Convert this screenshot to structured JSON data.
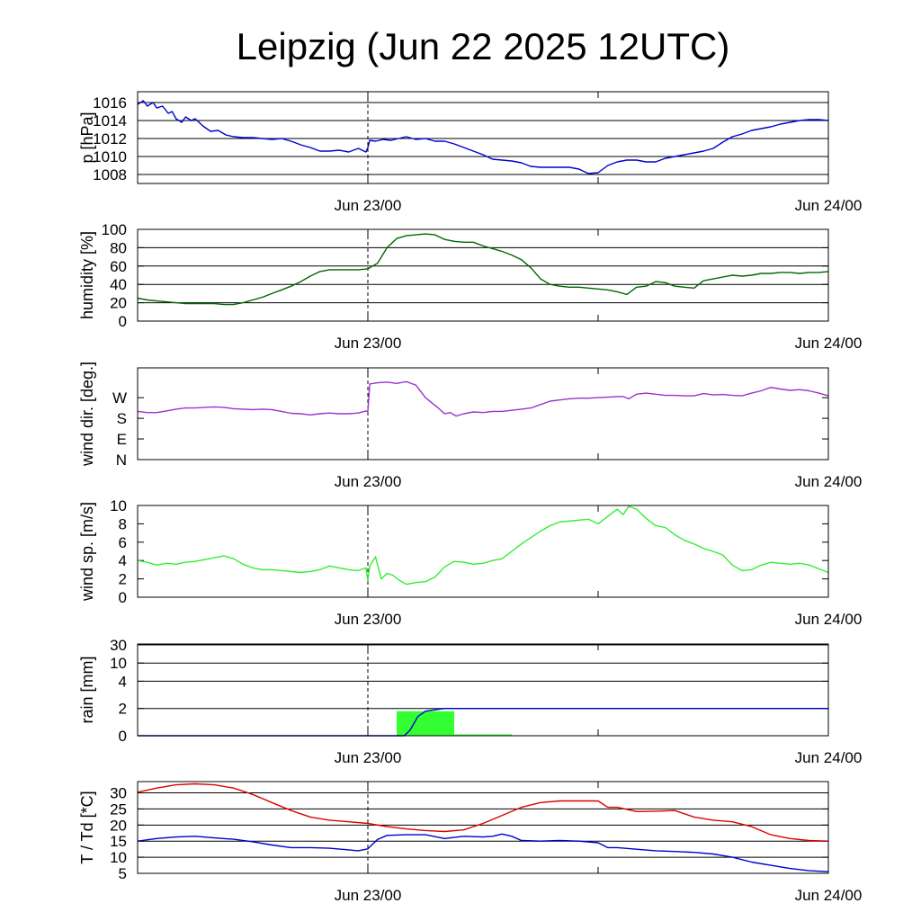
{
  "title": "Leipzig (Jun 22 2025 12UTC)",
  "x_axis": {
    "ticks": [
      "",
      "Jun 23/00",
      "",
      "Jun 24/00"
    ],
    "range_hours": [
      0,
      36
    ],
    "tick_hours": [
      0,
      12,
      24,
      36
    ],
    "marker_hour": 12
  },
  "chart_data": [
    {
      "type": "line",
      "ylabel": "p [hPa]",
      "ylim": [
        1007,
        1017.2
      ],
      "yticks": [
        1008,
        1010,
        1012,
        1014,
        1016
      ],
      "ytick_labels": [
        "1008",
        "1010",
        "1012",
        "1014",
        "1016"
      ],
      "grid": true,
      "series": [
        {
          "color": "#0000cc",
          "x": [
            0,
            0.3,
            0.5,
            0.8,
            1,
            1.3,
            1.6,
            1.8,
            2,
            2.3,
            2.5,
            2.8,
            3,
            3.4,
            3.8,
            4.2,
            4.6,
            5,
            5.5,
            6,
            6.5,
            7,
            7.5,
            8,
            8.5,
            9,
            9.5,
            10,
            10.5,
            11,
            11.5,
            11.9,
            12,
            12.1,
            12.4,
            12.8,
            13.2,
            13.6,
            14,
            14.5,
            15,
            15.5,
            16,
            16.5,
            17,
            17.5,
            18,
            18.5,
            19,
            19.5,
            20,
            20.5,
            21,
            21.5,
            22,
            22.5,
            23,
            23.5,
            24,
            24.5,
            25,
            25.5,
            26,
            26.5,
            27,
            27.5,
            28,
            28.5,
            29,
            29.5,
            30,
            30.5,
            31,
            31.5,
            32,
            32.5,
            33,
            33.5,
            34,
            34.5,
            35,
            35.5,
            36
          ],
          "y": [
            1015.8,
            1016.2,
            1015.6,
            1016.0,
            1015.4,
            1015.6,
            1014.8,
            1015.0,
            1014.2,
            1013.8,
            1014.4,
            1014.0,
            1014.2,
            1013.4,
            1012.8,
            1012.9,
            1012.4,
            1012.2,
            1012.1,
            1012.1,
            1012.0,
            1011.9,
            1012.0,
            1011.7,
            1011.3,
            1011.0,
            1010.6,
            1010.6,
            1010.7,
            1010.5,
            1010.9,
            1010.5,
            1011.0,
            1011.8,
            1011.7,
            1011.9,
            1011.8,
            1012.0,
            1012.2,
            1011.9,
            1012.0,
            1011.7,
            1011.7,
            1011.4,
            1011.0,
            1010.6,
            1010.2,
            1009.7,
            1009.6,
            1009.5,
            1009.3,
            1008.9,
            1008.8,
            1008.8,
            1008.8,
            1008.8,
            1008.6,
            1008.1,
            1008.2,
            1009.0,
            1009.4,
            1009.6,
            1009.6,
            1009.4,
            1009.4,
            1009.8,
            1010.0,
            1010.2,
            1010.4,
            1010.6,
            1010.9,
            1011.6,
            1012.2,
            1012.5,
            1012.9,
            1013.1,
            1013.3,
            1013.6,
            1013.8,
            1014.0,
            1014.1,
            1014.1,
            1014.0
          ]
        }
      ]
    },
    {
      "type": "line",
      "ylabel": "humidity [%]",
      "ylim": [
        0,
        100
      ],
      "yticks": [
        0,
        20,
        40,
        60,
        80,
        100
      ],
      "ytick_labels": [
        "0",
        "20",
        "40",
        "60",
        "80",
        "100"
      ],
      "grid": true,
      "series": [
        {
          "color": "#006600",
          "x": [
            0,
            0.5,
            1,
            1.5,
            2,
            2.5,
            3,
            3.5,
            4,
            4.5,
            5,
            5.5,
            6,
            6.5,
            7,
            7.5,
            8,
            8.5,
            9,
            9.5,
            10,
            10.5,
            11,
            11.5,
            12,
            12.5,
            13,
            13.5,
            14,
            14.5,
            15,
            15.5,
            16,
            16.5,
            17,
            17.5,
            18,
            18.5,
            19,
            19.5,
            20,
            20.5,
            21,
            21.5,
            22,
            22.5,
            23,
            23.5,
            24,
            24.5,
            25,
            25.5,
            26,
            26.5,
            27,
            27.5,
            28,
            28.5,
            29,
            29.5,
            30,
            30.5,
            31,
            31.5,
            32,
            32.5,
            33,
            33.5,
            34,
            34.5,
            35,
            35.5,
            36
          ],
          "y": [
            25,
            23,
            22,
            21,
            20,
            19,
            19,
            19,
            19,
            18,
            18,
            20,
            23,
            26,
            30,
            34,
            38,
            43,
            49,
            54,
            56,
            56,
            56,
            56,
            57,
            63,
            80,
            90,
            93,
            94,
            95,
            94,
            89,
            87,
            86,
            86,
            82,
            79,
            76,
            72,
            67,
            58,
            46,
            40,
            38,
            37,
            37,
            36,
            35,
            34,
            32,
            29,
            37,
            38,
            43,
            42,
            38,
            37,
            36,
            44,
            46,
            48,
            50,
            49,
            50,
            52,
            52,
            53,
            53,
            52,
            53,
            53,
            54
          ]
        }
      ]
    },
    {
      "type": "line",
      "ylabel": "wind dir. [deg.]",
      "ylim": [
        0,
        400
      ],
      "yticks": [
        0,
        90,
        180,
        270
      ],
      "ytick_labels": [
        "N",
        "E",
        "S",
        "W"
      ],
      "grid": false,
      "series": [
        {
          "color": "#9933cc",
          "x": [
            0,
            0.5,
            1,
            1.5,
            2,
            2.5,
            3,
            3.5,
            4,
            4.5,
            5,
            5.5,
            6,
            6.5,
            7,
            7.5,
            8,
            8.5,
            9,
            9.5,
            10,
            10.5,
            11,
            11.5,
            11.9,
            12,
            12.1,
            12.5,
            13,
            13.5,
            14,
            14.5,
            15,
            15.3,
            15.6,
            16,
            16.3,
            16.6,
            17,
            17.5,
            18,
            18.5,
            19,
            19.5,
            20,
            20.5,
            21,
            21.5,
            22,
            22.5,
            23,
            23.5,
            24,
            24.5,
            25,
            25.3,
            25.6,
            26,
            26.5,
            27,
            27.5,
            28,
            28.5,
            29,
            29.5,
            30,
            30.5,
            31,
            31.5,
            32,
            32.5,
            33,
            33.5,
            34,
            34.5,
            35,
            35.5,
            36
          ],
          "y": [
            210,
            205,
            205,
            212,
            220,
            225,
            225,
            228,
            230,
            228,
            222,
            220,
            218,
            220,
            218,
            210,
            202,
            200,
            195,
            200,
            203,
            200,
            200,
            203,
            212,
            210,
            330,
            335,
            338,
            332,
            340,
            325,
            270,
            250,
            230,
            200,
            205,
            190,
            200,
            208,
            205,
            210,
            210,
            215,
            220,
            225,
            240,
            255,
            260,
            265,
            268,
            268,
            270,
            272,
            275,
            275,
            265,
            285,
            290,
            285,
            280,
            280,
            278,
            278,
            288,
            282,
            284,
            280,
            278,
            290,
            300,
            315,
            308,
            302,
            305,
            300,
            290,
            278
          ]
        }
      ]
    },
    {
      "type": "line",
      "ylabel": "wind sp. [m/s]",
      "ylim": [
        0,
        10
      ],
      "yticks": [
        0,
        2,
        4,
        6,
        8,
        10
      ],
      "ytick_labels": [
        "0",
        "2",
        "4",
        "6",
        "8",
        "10"
      ],
      "grid": false,
      "series": [
        {
          "color": "#33ee33",
          "x": [
            0,
            0.5,
            1,
            1.5,
            2,
            2.5,
            3,
            3.5,
            4,
            4.5,
            5,
            5.5,
            6,
            6.5,
            7,
            7.5,
            8,
            8.5,
            9,
            9.5,
            10,
            10.5,
            11,
            11.5,
            11.9,
            12,
            12.1,
            12.4,
            12.7,
            13,
            13.3,
            13.6,
            14,
            14.5,
            15,
            15.5,
            16,
            16.5,
            17,
            17.5,
            18,
            18.5,
            19,
            19.5,
            20,
            20.5,
            21,
            21.5,
            22,
            22.5,
            23,
            23.5,
            24,
            24.5,
            25,
            25.3,
            25.6,
            26,
            26.5,
            27,
            27.5,
            28,
            28.5,
            29,
            29.5,
            30,
            30.5,
            31,
            31.5,
            32,
            32.5,
            33,
            33.5,
            34,
            34.5,
            35,
            35.5,
            36
          ],
          "y": [
            4.0,
            3.8,
            3.5,
            3.7,
            3.6,
            3.8,
            3.9,
            4.1,
            4.3,
            4.5,
            4.2,
            3.6,
            3.2,
            3.0,
            3.0,
            2.9,
            2.8,
            2.7,
            2.8,
            3.0,
            3.4,
            3.2,
            3.0,
            2.9,
            3.2,
            1.8,
            3.4,
            4.4,
            2.0,
            2.6,
            2.4,
            1.9,
            1.4,
            1.6,
            1.7,
            2.2,
            3.3,
            3.9,
            3.8,
            3.6,
            3.7,
            4.0,
            4.2,
            5.0,
            5.8,
            6.5,
            7.2,
            7.8,
            8.2,
            8.3,
            8.4,
            8.5,
            8.0,
            8.8,
            9.6,
            9.0,
            9.9,
            9.6,
            8.6,
            7.8,
            7.6,
            6.8,
            6.2,
            5.8,
            5.3,
            5.0,
            4.6,
            3.5,
            2.9,
            3.0,
            3.5,
            3.8,
            3.7,
            3.6,
            3.7,
            3.5,
            3.1,
            2.7
          ]
        }
      ]
    },
    {
      "type": "bar",
      "ylabel": "rain [mm]",
      "scale": "nonlinear",
      "ylim": [
        0,
        31
      ],
      "yticks": [
        0,
        2,
        4,
        10,
        30
      ],
      "ytick_labels": [
        "0",
        "2",
        "4",
        "10",
        "30"
      ],
      "grid": true,
      "bars": {
        "color": "#33ff33",
        "start_hours": [
          13.5,
          16.5
        ],
        "end_hours": [
          16.5,
          19.5
        ],
        "values": [
          1.8,
          0.1
        ]
      },
      "series": [
        {
          "name": "accumulated",
          "color": "#0000cc",
          "x": [
            0,
            13.9,
            14.2,
            14.6,
            15.0,
            15.5,
            16.0,
            36
          ],
          "y": [
            0,
            0,
            0.4,
            1.4,
            1.8,
            1.9,
            2.0,
            2.0
          ]
        }
      ]
    },
    {
      "type": "line",
      "ylabel": "T / Td [*C]",
      "ylim": [
        5,
        33.5
      ],
      "yticks": [
        5,
        10,
        15,
        20,
        25,
        30
      ],
      "ytick_labels": [
        "5",
        "10",
        "15",
        "20",
        "25",
        "30"
      ],
      "grid": true,
      "series": [
        {
          "color": "#dd0000",
          "x": [
            0,
            1,
            2,
            3,
            4,
            5,
            6,
            7,
            8,
            9,
            10,
            11,
            12,
            13,
            14,
            15,
            16,
            17,
            18,
            19,
            20,
            21,
            22,
            23,
            24,
            24.5,
            25,
            26,
            27,
            28,
            29,
            30,
            31,
            32,
            33,
            34,
            35,
            36
          ],
          "y": [
            30.2,
            31.5,
            32.5,
            32.8,
            32.5,
            31.5,
            29.5,
            27.0,
            24.5,
            22.5,
            21.5,
            21.0,
            20.5,
            19.5,
            18.8,
            18.3,
            18.0,
            18.5,
            20.5,
            23.0,
            25.5,
            27.0,
            27.5,
            27.5,
            27.5,
            25.5,
            25.5,
            24.2,
            24.3,
            24.5,
            22.5,
            21.5,
            21.0,
            19.5,
            17.0,
            15.8,
            15.2,
            15.0
          ]
        },
        {
          "color": "#0000cc",
          "x": [
            0,
            1,
            2,
            3,
            4,
            5,
            6,
            7,
            8,
            9,
            10,
            11,
            11.5,
            12,
            12.5,
            13,
            14,
            15,
            16,
            17,
            18,
            18.5,
            19,
            19.5,
            20,
            21,
            22,
            23,
            24,
            24.5,
            25,
            26,
            27,
            28,
            29,
            30,
            31,
            32,
            33,
            34,
            35,
            36
          ],
          "y": [
            15.0,
            15.8,
            16.3,
            16.5,
            16.0,
            15.6,
            14.8,
            13.8,
            13.0,
            13.0,
            12.8,
            12.3,
            12.0,
            12.6,
            15.5,
            16.8,
            17.0,
            17.0,
            15.8,
            16.5,
            16.3,
            16.5,
            17.2,
            16.5,
            15.2,
            15.0,
            15.2,
            15.0,
            14.5,
            13.0,
            13.0,
            12.5,
            12.0,
            11.8,
            11.5,
            11.0,
            10.0,
            8.5,
            7.5,
            6.5,
            5.8,
            5.5
          ]
        }
      ]
    }
  ]
}
